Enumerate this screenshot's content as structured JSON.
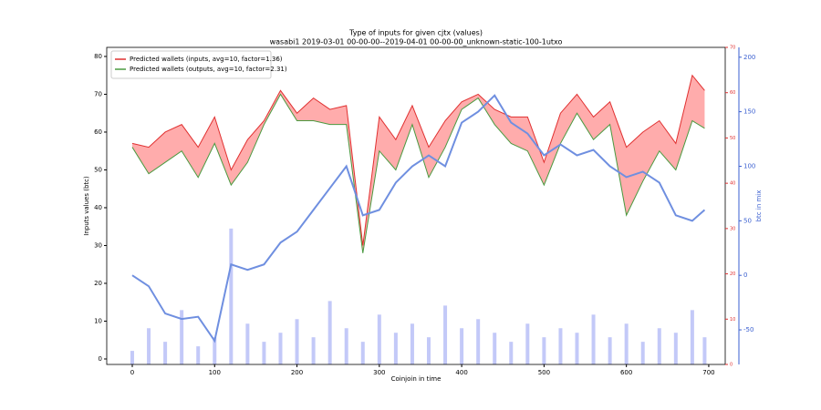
{
  "chart_data": {
    "type": "line",
    "title": "Type of inputs for given cjtx (values)",
    "subtitle": "wasabi1 2019-03-01 00-00-00--2019-04-01 00-00-00_unknown-static-100-1utxo",
    "xlabel": "Coinjoin in time",
    "ylabel": "Inputs values (btc)",
    "y2label": "btc in mix",
    "x": [
      0,
      20,
      40,
      60,
      80,
      100,
      120,
      140,
      160,
      180,
      200,
      220,
      240,
      260,
      280,
      300,
      320,
      340,
      360,
      380,
      400,
      420,
      440,
      460,
      480,
      500,
      520,
      540,
      560,
      580,
      600,
      620,
      640,
      660,
      680,
      695
    ],
    "series": [
      {
        "name": "Predicted wallets (inputs, avg=10, factor=1.36)",
        "color": "#e03030",
        "axis": "y",
        "values": [
          57,
          56,
          60,
          62,
          56,
          64,
          50,
          58,
          63,
          71,
          65,
          69,
          66,
          67,
          30,
          64,
          58,
          67,
          56,
          63,
          68,
          70,
          66,
          64,
          64,
          52,
          65,
          70,
          64,
          68,
          56,
          60,
          63,
          57,
          75,
          71
        ]
      },
      {
        "name": "Predicted wallets (outputs, avg=10, factor=2.31)",
        "color": "#4a9a40",
        "axis": "y",
        "values": [
          56,
          49,
          52,
          55,
          48,
          57,
          46,
          52,
          62,
          70,
          63,
          63,
          62,
          62,
          28,
          55,
          50,
          62,
          48,
          56,
          66,
          69,
          62,
          57,
          55,
          46,
          57,
          65,
          58,
          62,
          38,
          47,
          55,
          50,
          63,
          61
        ]
      },
      {
        "color": "#6f8fe0",
        "axis": "y2",
        "values": [
          0,
          -10,
          -35,
          -40,
          -38,
          -60,
          10,
          5,
          10,
          30,
          40,
          60,
          80,
          100,
          55,
          60,
          85,
          100,
          110,
          100,
          140,
          150,
          165,
          140,
          130,
          110,
          120,
          110,
          115,
          100,
          90,
          95,
          85,
          55,
          50,
          60
        ]
      },
      {
        "color": "#aab2f5",
        "axis": "y3",
        "kind": "bar",
        "values": [
          3,
          8,
          5,
          12,
          4,
          6,
          30,
          9,
          5,
          7,
          10,
          6,
          14,
          8,
          5,
          11,
          7,
          9,
          6,
          13,
          8,
          10,
          7,
          5,
          9,
          6,
          8,
          7,
          11,
          6,
          9,
          5,
          8,
          7,
          12,
          6
        ]
      }
    ],
    "fill_between": {
      "color": "#ff3030",
      "alpha": 0.4
    },
    "xlim": [
      -31,
      720
    ],
    "xticks": [
      0,
      100,
      200,
      300,
      400,
      500,
      600,
      700
    ],
    "ylim": [
      -1.45,
      82.4
    ],
    "yticks": [
      0,
      10,
      20,
      30,
      40,
      50,
      60,
      70,
      80
    ],
    "y2lim": [
      -81.7,
      209
    ],
    "y2ticks": [
      -50,
      0,
      50,
      100,
      150,
      200
    ],
    "y3lim": [
      0,
      70
    ],
    "y3ticks": [
      0,
      10,
      20,
      30,
      40,
      50,
      60,
      70
    ],
    "legend": "upper left"
  }
}
